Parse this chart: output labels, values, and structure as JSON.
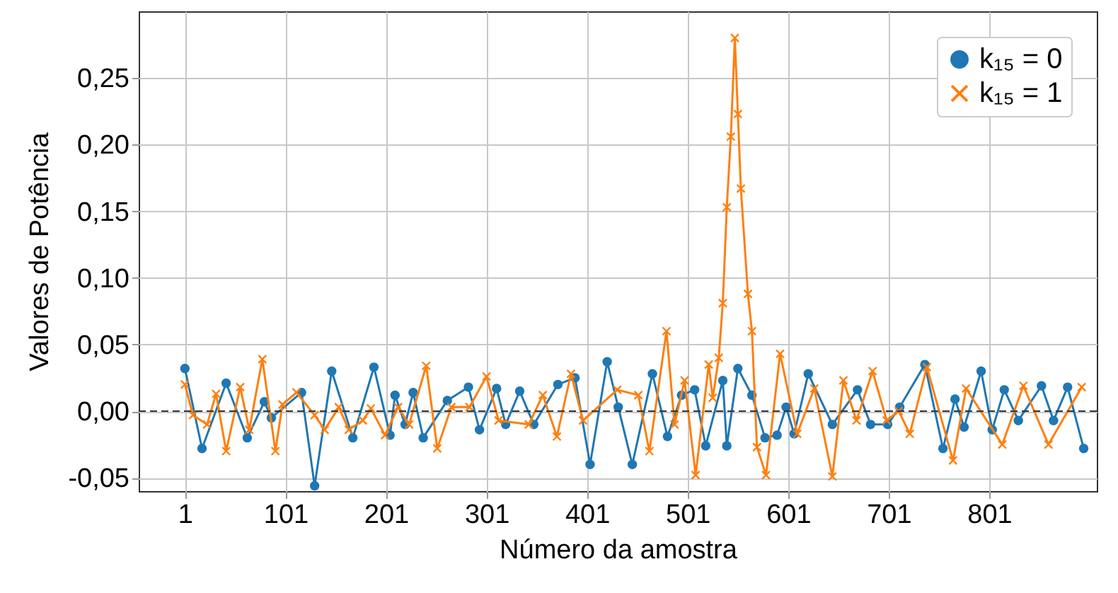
{
  "chart_data": {
    "type": "line",
    "xlabel": "Número da amostra",
    "ylabel": "Valores de Potência",
    "xlim": [
      -45,
      908
    ],
    "xticks": [
      1,
      101,
      201,
      301,
      401,
      501,
      601,
      701,
      801
    ],
    "ylim": [
      -0.06,
      0.3
    ],
    "yticks": [
      {
        "value": -0.05,
        "label": "-0,05"
      },
      {
        "value": 0,
        "label": "0,00"
      },
      {
        "value": 0.05,
        "label": "0,05"
      },
      {
        "value": 0.1,
        "label": "0,10"
      },
      {
        "value": 0.15,
        "label": "0,15"
      },
      {
        "value": 0.2,
        "label": "0,20"
      },
      {
        "value": 0.25,
        "label": "0,25"
      }
    ],
    "grid": true,
    "legend": "top right",
    "ref_lines": [
      {
        "axis": "y",
        "value": 0,
        "color": "#333333",
        "line_style": "dashed"
      }
    ],
    "series": [
      {
        "name": "k₁₅ = 0",
        "color": "#1f77b4",
        "marker": "circle",
        "x": [
          1,
          18,
          42,
          63,
          80,
          87,
          117,
          130,
          147,
          168,
          189,
          205,
          210,
          220,
          228,
          238,
          262,
          283,
          294,
          311,
          320,
          334,
          348,
          372,
          389,
          404,
          421,
          432,
          446,
          466,
          481,
          495,
          508,
          519,
          536,
          540,
          551,
          565,
          578,
          590,
          599,
          607,
          621,
          645,
          670,
          683,
          700,
          712,
          737,
          755,
          767,
          776,
          793,
          804,
          816,
          830,
          853,
          865,
          879,
          895
        ],
        "values": [
          0.032,
          -0.028,
          0.021,
          -0.02,
          0.007,
          -0.005,
          0.014,
          -0.056,
          0.03,
          -0.02,
          0.033,
          -0.018,
          0.012,
          -0.01,
          0.014,
          -0.02,
          0.008,
          0.018,
          -0.014,
          0.017,
          -0.01,
          0.015,
          -0.01,
          0.02,
          0.025,
          -0.04,
          0.037,
          0.003,
          -0.04,
          0.028,
          -0.019,
          0.012,
          0.016,
          -0.026,
          0.023,
          -0.026,
          0.032,
          0.012,
          -0.02,
          -0.018,
          0.003,
          -0.017,
          0.028,
          -0.01,
          0.016,
          -0.01,
          -0.01,
          0.003,
          0.035,
          -0.028,
          0.009,
          -0.012,
          0.03,
          -0.014,
          0.016,
          -0.007,
          0.019,
          -0.007,
          0.018,
          -0.028
        ]
      },
      {
        "name": "k₁₅ = 1",
        "color": "#ff7f0e",
        "marker": "cross",
        "x": [
          1,
          9,
          23,
          32,
          42,
          56,
          65,
          78,
          91,
          98,
          112,
          130,
          140,
          154,
          164,
          178,
          186,
          200,
          213,
          224,
          241,
          252,
          266,
          284,
          301,
          313,
          343,
          357,
          371,
          385,
          397,
          431,
          452,
          463,
          480,
          488,
          498,
          509,
          522,
          526,
          532,
          536,
          540,
          544,
          548,
          551,
          554,
          561,
          565,
          570,
          579,
          593,
          610,
          627,
          645,
          656,
          669,
          685,
          699,
          711,
          722,
          739,
          765,
          778,
          814,
          835,
          860,
          893
        ],
        "values": [
          0.02,
          -0.003,
          -0.01,
          0.013,
          -0.03,
          0.018,
          -0.014,
          0.039,
          -0.03,
          0.005,
          0.014,
          -0.003,
          -0.014,
          0.003,
          -0.014,
          -0.007,
          0.002,
          -0.018,
          0.003,
          -0.01,
          0.034,
          -0.028,
          0.003,
          0.003,
          0.026,
          -0.007,
          -0.01,
          0.012,
          -0.019,
          0.028,
          -0.007,
          0.016,
          0.012,
          -0.03,
          0.06,
          -0.01,
          0.023,
          -0.048,
          0.035,
          0.01,
          0.04,
          0.081,
          0.153,
          0.206,
          0.28,
          0.223,
          0.167,
          0.088,
          0.06,
          -0.027,
          -0.048,
          0.043,
          -0.017,
          0.017,
          -0.049,
          0.023,
          -0.007,
          0.03,
          -0.007,
          0,
          -0.017,
          0.033,
          -0.037,
          0.017,
          -0.025,
          0.019,
          -0.025,
          0.018
        ]
      }
    ]
  }
}
